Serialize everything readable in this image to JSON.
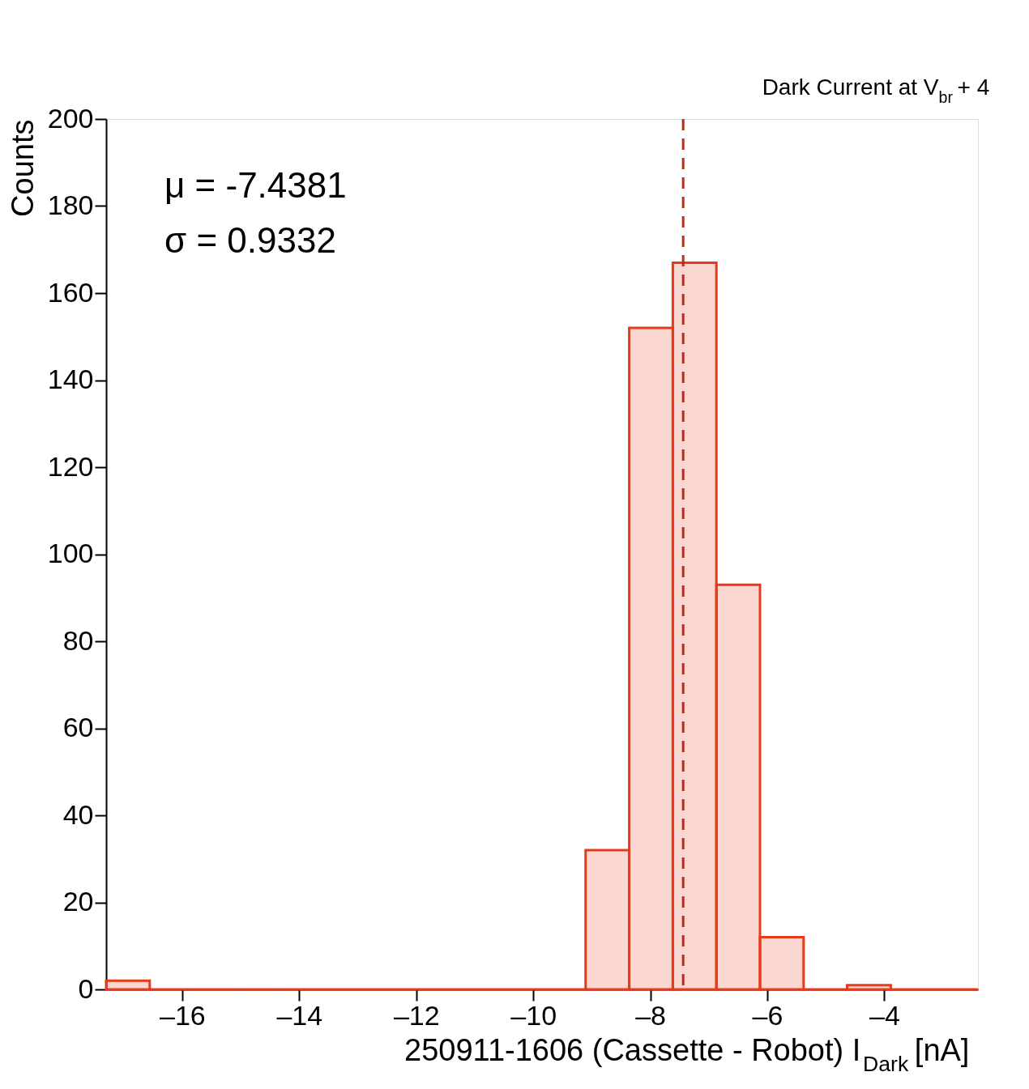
{
  "chart_data": {
    "type": "histogram",
    "subtitle": "Dark Current at V$_{br}$ + 4",
    "xlabel": "250911-1606 (Cassette - Robot) I$_{Dark}$ [nA]",
    "ylabel": "Counts",
    "bins": [
      -17.3,
      -16.555,
      -15.81,
      -15.065,
      -14.32,
      -13.575,
      -12.83,
      -12.085,
      -11.34,
      -10.595,
      -9.85,
      -9.105,
      -8.36,
      -7.615,
      -6.87,
      -6.125,
      -5.38,
      -4.635,
      -3.89,
      -3.145,
      -2.4
    ],
    "values": [
      2,
      0,
      0,
      0,
      0,
      0,
      0,
      0,
      0,
      0,
      0,
      32,
      152,
      167,
      93,
      12,
      0,
      1,
      0,
      0
    ],
    "color": "#e8391a",
    "xlim": [
      -17.3,
      -2.4
    ],
    "xticks": [
      {
        "value": -16,
        "label": "–16"
      },
      {
        "value": -14,
        "label": "–14"
      },
      {
        "value": -12,
        "label": "–12"
      },
      {
        "value": -10,
        "label": "–10"
      },
      {
        "value": -8,
        "label": "–8"
      },
      {
        "value": -6,
        "label": "–6"
      },
      {
        "value": -4,
        "label": "–4"
      }
    ],
    "ylim": [
      0,
      200
    ],
    "yticks": [
      0,
      20,
      40,
      60,
      80,
      100,
      120,
      140,
      160,
      180,
      200
    ],
    "grid": false,
    "ref_lines": [
      {
        "axis": "x",
        "value": -7.4381,
        "color": "#b03020",
        "line_style": "dashed"
      }
    ],
    "annotations": [
      "μ = -7.4381",
      "σ = 0.9332"
    ]
  }
}
